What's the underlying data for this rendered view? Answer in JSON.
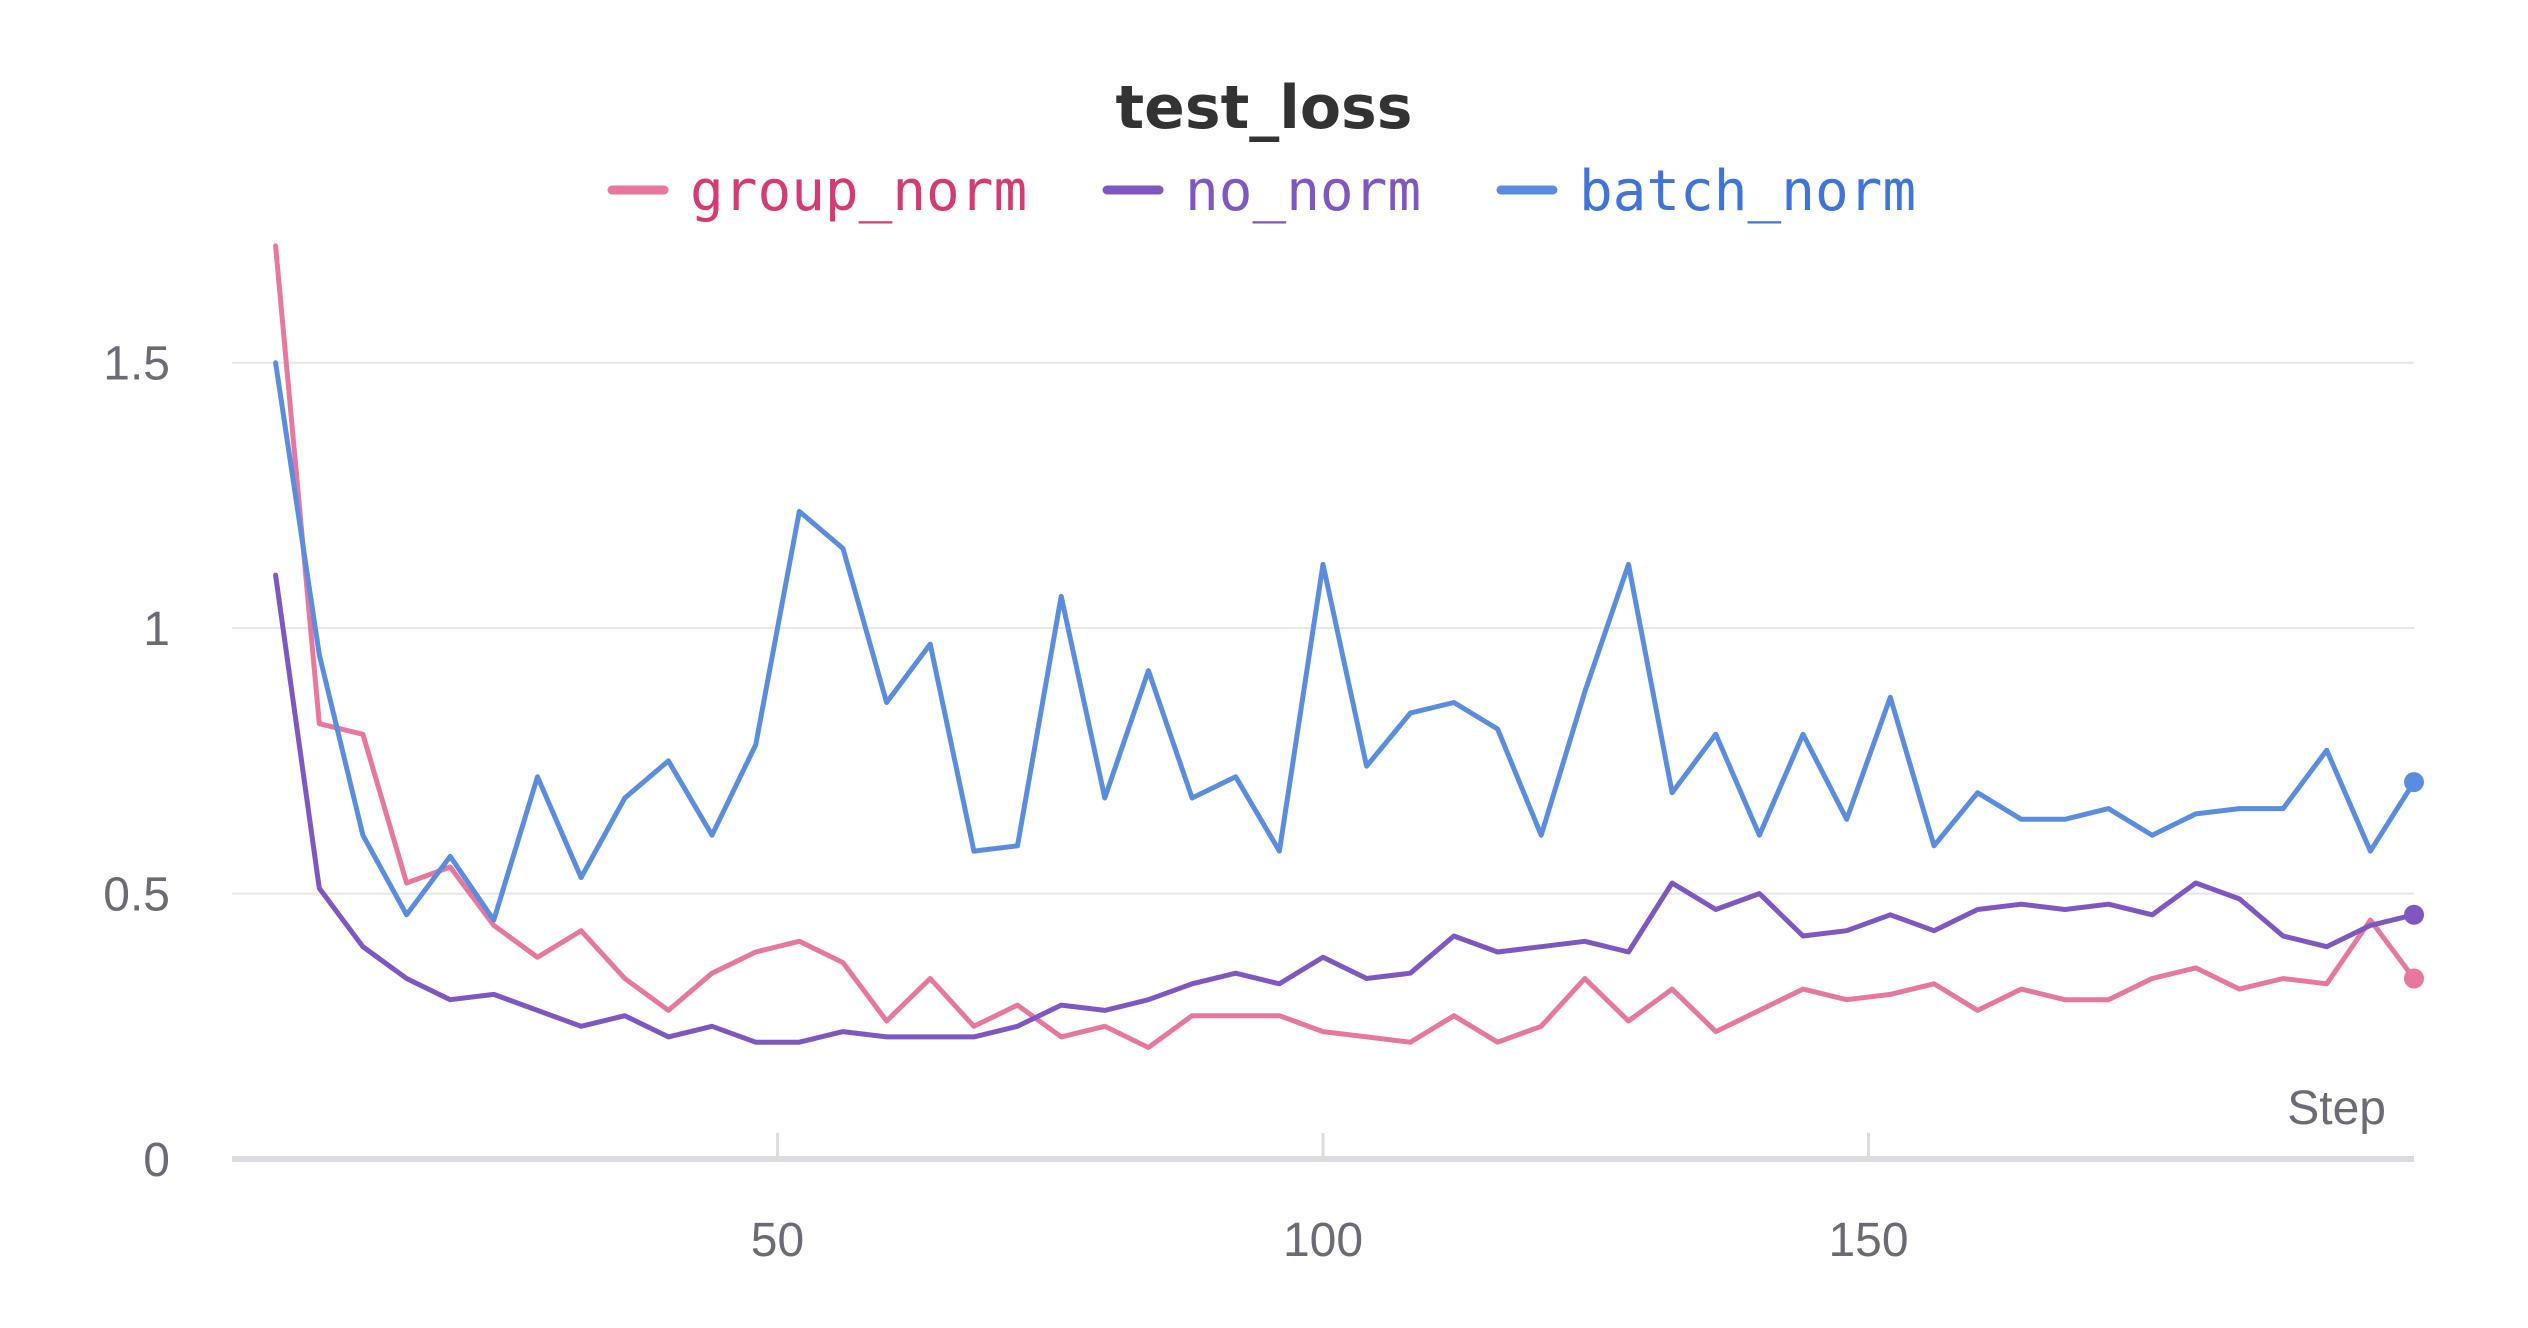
{
  "chart_data": {
    "type": "line",
    "title": "test_loss",
    "xlabel": "Step",
    "ylabel": "",
    "xlim": [
      0,
      200
    ],
    "ylim": [
      0,
      1.75
    ],
    "xticks": [
      50,
      100,
      150
    ],
    "xtick_labels": [
      "50",
      "100",
      "150"
    ],
    "yticks": [
      0,
      0.5,
      1,
      1.5
    ],
    "ytick_labels": [
      "0",
      "0.5",
      "1",
      "1.5"
    ],
    "grid": true,
    "legend": "top-center",
    "x": [
      4,
      8,
      12,
      16,
      20,
      24,
      28,
      32,
      36,
      40,
      44,
      48,
      52,
      56,
      60,
      64,
      68,
      72,
      76,
      80,
      84,
      88,
      92,
      96,
      100,
      104,
      108,
      112,
      116,
      120,
      124,
      128,
      132,
      136,
      140,
      144,
      148,
      152,
      156,
      160,
      164,
      168,
      172,
      176,
      180,
      184,
      188,
      192,
      196,
      200
    ],
    "series": [
      {
        "name": "group_norm",
        "color": "#e8779f",
        "label_color": "#d63a74",
        "values": [
          1.72,
          0.82,
          0.8,
          0.52,
          0.55,
          0.44,
          0.38,
          0.43,
          0.34,
          0.28,
          0.35,
          0.39,
          0.41,
          0.37,
          0.26,
          0.34,
          0.25,
          0.29,
          0.23,
          0.25,
          0.21,
          0.27,
          0.27,
          0.27,
          0.24,
          0.23,
          0.22,
          0.27,
          0.22,
          0.25,
          0.34,
          0.26,
          0.32,
          0.24,
          0.28,
          0.32,
          0.3,
          0.31,
          0.33,
          0.28,
          0.32,
          0.3,
          0.3,
          0.34,
          0.36,
          0.32,
          0.34,
          0.33,
          0.45,
          0.34
        ]
      },
      {
        "name": "no_norm",
        "color": "#7e57c2",
        "label_color": "#7e57c2",
        "values": [
          1.1,
          0.51,
          0.4,
          0.34,
          0.3,
          0.31,
          0.28,
          0.25,
          0.27,
          0.23,
          0.25,
          0.22,
          0.22,
          0.24,
          0.23,
          0.23,
          0.23,
          0.25,
          0.29,
          0.28,
          0.3,
          0.33,
          0.35,
          0.33,
          0.38,
          0.34,
          0.35,
          0.42,
          0.39,
          0.4,
          0.41,
          0.39,
          0.52,
          0.47,
          0.5,
          0.42,
          0.43,
          0.46,
          0.43,
          0.47,
          0.48,
          0.47,
          0.48,
          0.46,
          0.52,
          0.49,
          0.42,
          0.4,
          0.44,
          0.46
        ]
      },
      {
        "name": "batch_norm",
        "color": "#5a8de0",
        "label_color": "#3f74d8",
        "values": [
          1.5,
          0.95,
          0.61,
          0.46,
          0.57,
          0.45,
          0.72,
          0.53,
          0.68,
          0.75,
          0.61,
          0.78,
          1.22,
          1.15,
          0.86,
          0.97,
          0.58,
          0.59,
          1.06,
          0.68,
          0.92,
          0.68,
          0.72,
          0.58,
          1.12,
          0.74,
          0.84,
          0.86,
          0.81,
          0.61,
          0.88,
          1.12,
          0.69,
          0.8,
          0.61,
          0.8,
          0.64,
          0.87,
          0.59,
          0.69,
          0.64,
          0.64,
          0.66,
          0.61,
          0.65,
          0.66,
          0.66,
          0.77,
          0.58,
          0.71
        ]
      }
    ]
  }
}
